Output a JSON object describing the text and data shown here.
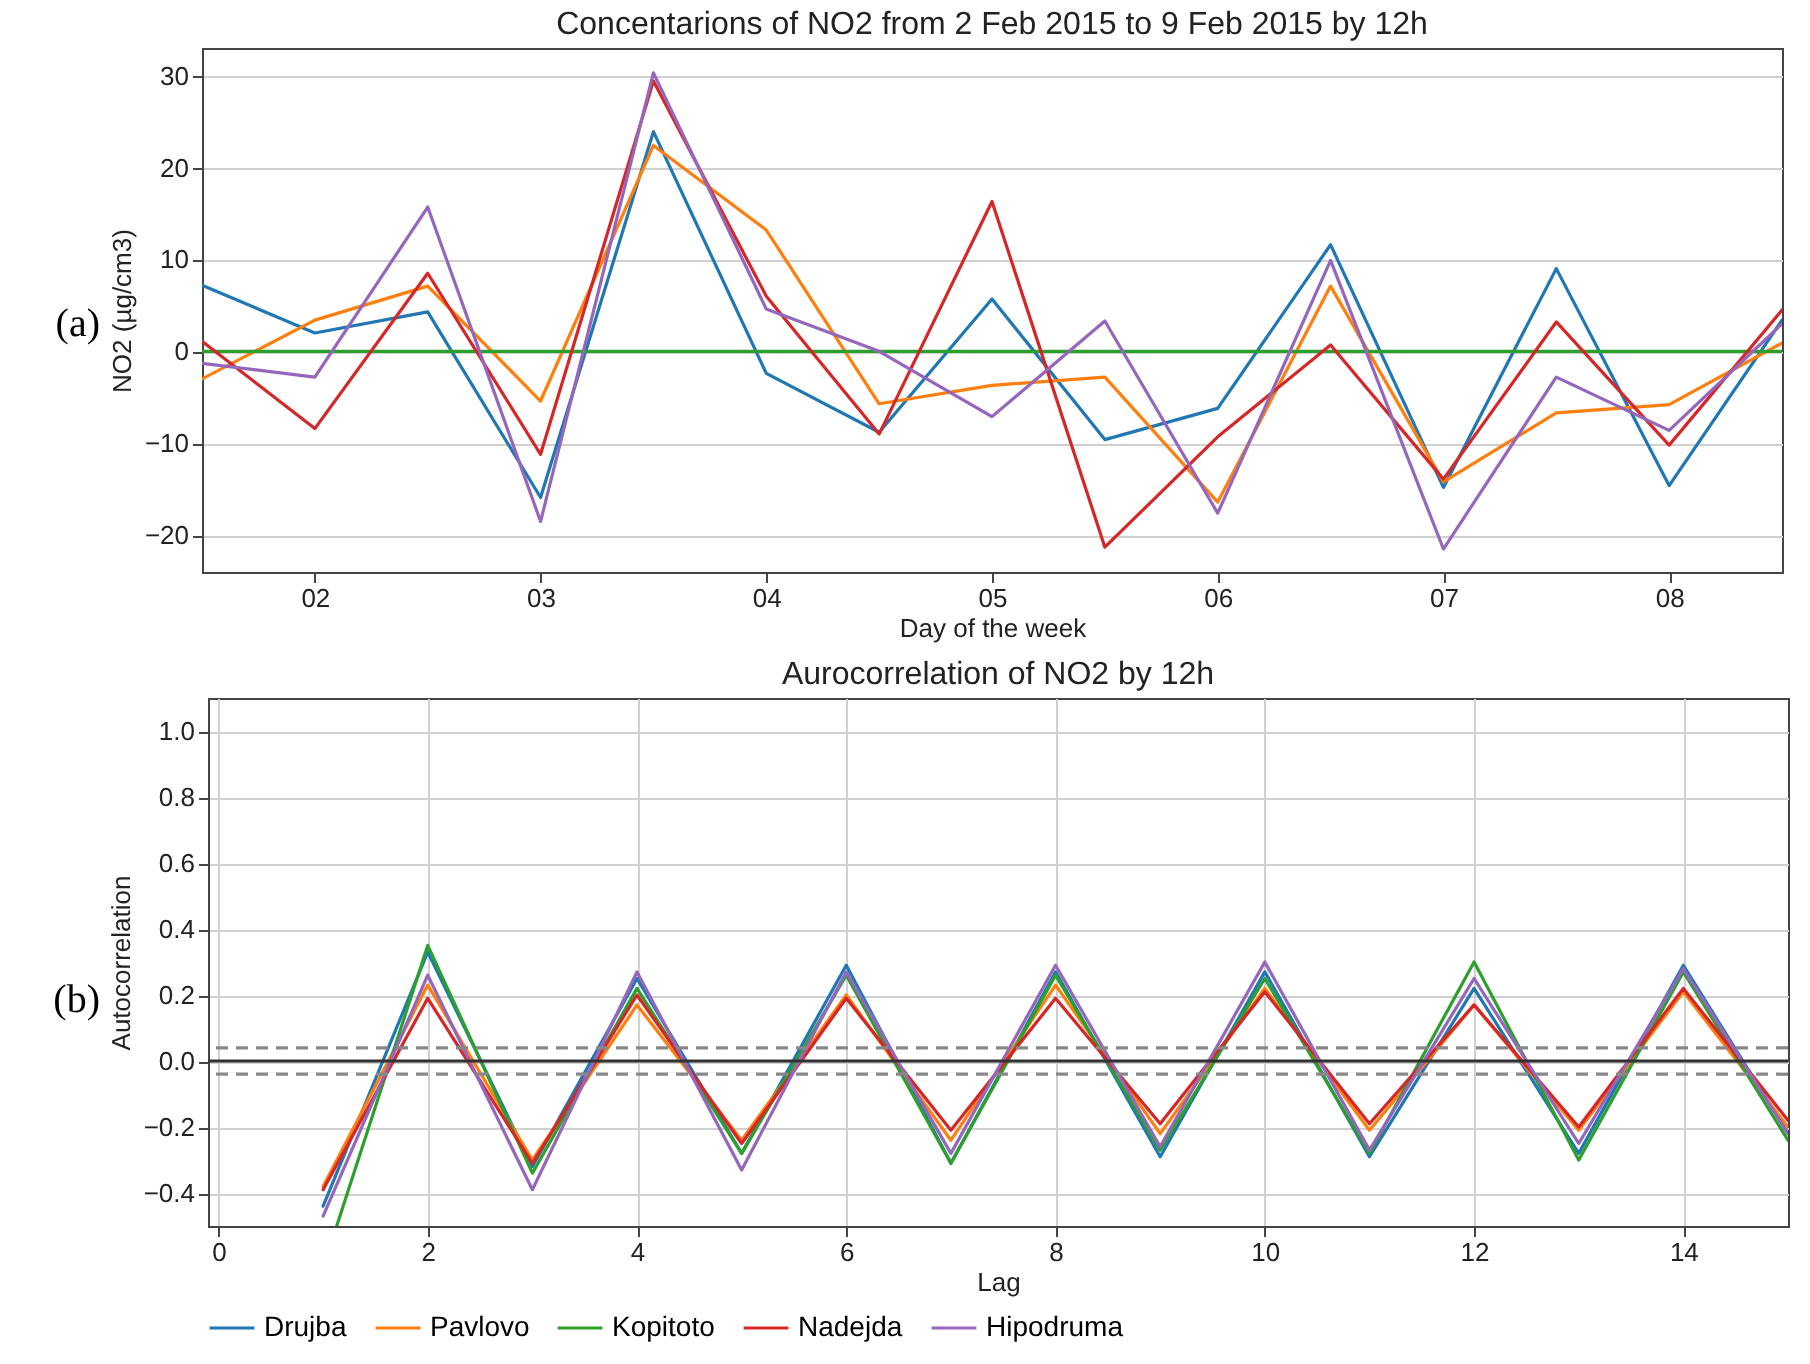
{
  "chart_data": [
    {
      "type": "line",
      "title": "Concentarions of NO2 from 2 Feb 2015 to 9 Feb 2015 by 12h",
      "xlabel": "Day of the week",
      "ylabel": "NO2 (µg/cm3)",
      "annotations": [
        "(a)"
      ],
      "x": [
        "2015-02-01T12:00",
        "2015-02-02T00:00",
        "2015-02-02T12:00",
        "2015-02-03T00:00",
        "2015-02-03T12:00",
        "2015-02-04T00:00",
        "2015-02-04T12:00",
        "2015-02-05T00:00",
        "2015-02-05T12:00",
        "2015-02-06T00:00",
        "2015-02-06T12:00",
        "2015-02-07T00:00",
        "2015-02-07T12:00",
        "2015-02-08T00:00",
        "2015-02-08T12:00"
      ],
      "series": [
        {
          "color": "#1f77b4",
          "values": [
            7.2,
            2,
            4.3,
            -15.9,
            23.9,
            -2.4,
            -8.8,
            5.7,
            -9.6,
            -6.2,
            11.6,
            -14.8,
            9,
            -14.6,
            3.4
          ]
        },
        {
          "color": "#ff7f0e",
          "values": [
            -3,
            3.4,
            7.1,
            -5.4,
            22.4,
            13.2,
            -5.7,
            -3.7,
            -2.8,
            -16.4,
            7.1,
            -14.2,
            -6.7,
            -5.8,
            0.9
          ]
        },
        {
          "color": "#2ca02c",
          "values": [
            0,
            0,
            0,
            0,
            0,
            0,
            0,
            0,
            0,
            0,
            0,
            0,
            0,
            0,
            0
          ]
        },
        {
          "color": "#d62728",
          "values": [
            1.1,
            -8.4,
            8.5,
            -11.2,
            29.4,
            6,
            -9,
            16.3,
            -21.3,
            -9.3,
            0.7,
            -13.9,
            3.2,
            -10.2,
            4.5
          ]
        },
        {
          "color": "#9467bd",
          "values": [
            -1.3,
            -2.8,
            15.7,
            -18.5,
            30.3,
            4.6,
            0,
            -7.1,
            3.3,
            -17.6,
            9.9,
            -21.5,
            -2.8,
            -8.6,
            3
          ]
        }
      ],
      "xlim": [
        "2015-02-01T12:00",
        "2015-02-08T12:00"
      ],
      "xticks": [
        {
          "value": "2015-02-02",
          "label": "02"
        },
        {
          "value": "2015-02-03",
          "label": "03"
        },
        {
          "value": "2015-02-04",
          "label": "04"
        },
        {
          "value": "2015-02-05",
          "label": "05"
        },
        {
          "value": "2015-02-06",
          "label": "06"
        },
        {
          "value": "2015-02-07",
          "label": "07"
        },
        {
          "value": "2015-02-08",
          "label": "08"
        }
      ],
      "ylim": [
        -24,
        33
      ],
      "yticks": [
        {
          "value": -20,
          "label": "−20"
        },
        {
          "value": -10,
          "label": "−10"
        },
        0,
        10,
        20,
        30
      ],
      "grid": "y",
      "legend": false,
      "line_style": "solid",
      "marker": "none"
    },
    {
      "type": "line",
      "title": "Aurocorrelation of NO2 by 12h",
      "xlabel": "Lag",
      "ylabel": "Autocorrelation",
      "annotations": [
        "(b)"
      ],
      "x": [
        1,
        2,
        3,
        4,
        5,
        6,
        7,
        8,
        9,
        10,
        11,
        12,
        13,
        14,
        15
      ],
      "series": [
        {
          "name": "Drujba",
          "color": "#1f77b4",
          "values": [
            -0.44,
            0.33,
            -0.32,
            0.25,
            -0.28,
            0.29,
            -0.31,
            0.27,
            -0.29,
            0.27,
            -0.29,
            0.22,
            -0.28,
            0.29,
            -0.22
          ]
        },
        {
          "name": "Pavlovo",
          "color": "#ff7f0e",
          "values": [
            -0.38,
            0.23,
            -0.3,
            0.17,
            -0.24,
            0.2,
            -0.24,
            0.23,
            -0.22,
            0.22,
            -0.21,
            0.17,
            -0.21,
            0.21,
            -0.2
          ]
        },
        {
          "name": "Kopitoto",
          "color": "#2ca02c",
          "x": [
            1.13,
            2,
            3,
            4,
            5,
            6,
            7,
            8,
            9,
            10,
            11,
            12,
            13,
            14,
            15
          ],
          "values": [
            -0.5,
            0.35,
            -0.34,
            0.22,
            -0.28,
            0.26,
            -0.31,
            0.26,
            -0.27,
            0.25,
            -0.28,
            0.3,
            -0.3,
            0.27,
            -0.24
          ]
        },
        {
          "name": "Nadejda",
          "color": "#d62728",
          "values": [
            -0.39,
            0.19,
            -0.31,
            0.2,
            -0.25,
            0.19,
            -0.21,
            0.19,
            -0.19,
            0.21,
            -0.19,
            0.17,
            -0.2,
            0.22,
            -0.18
          ]
        },
        {
          "name": "Hipodruma",
          "color": "#9467bd",
          "values": [
            -0.47,
            0.26,
            -0.39,
            0.27,
            -0.33,
            0.27,
            -0.28,
            0.29,
            -0.26,
            0.3,
            -0.27,
            0.25,
            -0.25,
            0.28,
            -0.22
          ]
        }
      ],
      "xlim": [
        -0.1,
        15
      ],
      "xticks": [
        0,
        2,
        4,
        6,
        8,
        10,
        12,
        14
      ],
      "ylim": [
        -0.5,
        1.1
      ],
      "yticks": [
        {
          "value": -0.4,
          "label": "−0.4"
        },
        {
          "value": -0.2,
          "label": "−0.2"
        },
        {
          "value": 0,
          "label": "0.0"
        },
        0.2,
        0.4,
        0.6,
        0.8,
        {
          "value": 1,
          "label": "1.0"
        }
      ],
      "ref_lines": [
        {
          "axis": "y",
          "value": 0,
          "color": "#333333",
          "line_style": "solid"
        },
        {
          "axis": "y",
          "value": 0.04,
          "color": "#888888",
          "line_style": "dashed"
        },
        {
          "axis": "y",
          "value": -0.04,
          "color": "#888888",
          "line_style": "dashed"
        }
      ],
      "grid": true,
      "legend": "bottom",
      "line_style": "solid",
      "marker": "none"
    }
  ]
}
